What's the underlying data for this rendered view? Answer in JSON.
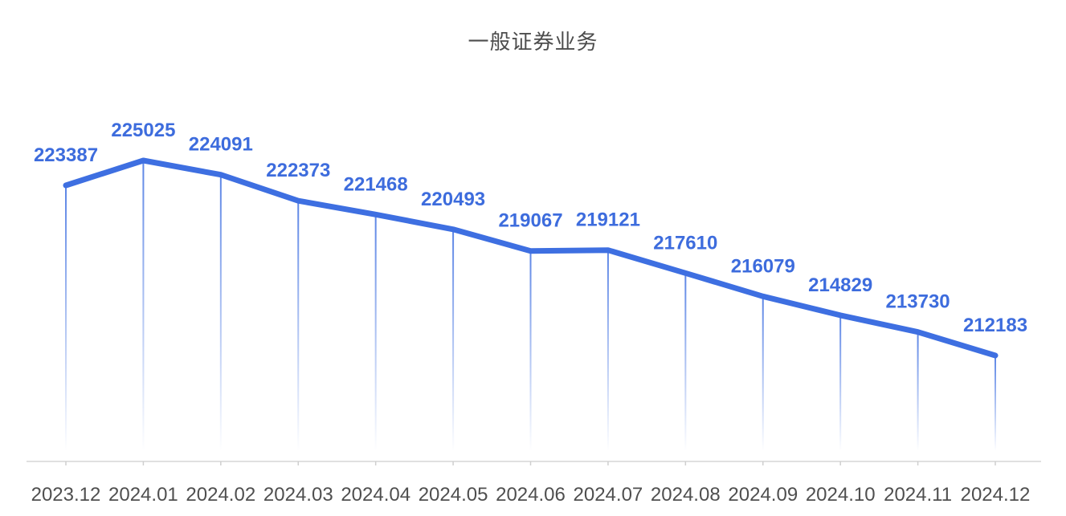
{
  "chart_data": {
    "type": "line",
    "title": "一般证券业务",
    "categories": [
      "2023.12",
      "2024.01",
      "2024.02",
      "2024.03",
      "2024.04",
      "2024.05",
      "2024.06",
      "2024.07",
      "2024.08",
      "2024.09",
      "2024.10",
      "2024.11",
      "2024.12"
    ],
    "values": [
      223387,
      225025,
      224091,
      222373,
      221468,
      220493,
      219067,
      219121,
      217610,
      216079,
      214829,
      213730,
      212183
    ],
    "ylim": [
      212183,
      225025
    ],
    "xlabel": "",
    "ylabel": "",
    "legend": "none",
    "grid": false,
    "data_labels_visible": true,
    "colors": {
      "line": "#3e6fe1",
      "data_label": "#3d6cdd",
      "drop_line": "#3e6fe1",
      "axis_line": "#e0e0e0",
      "axis_tick": "#cfcfcf",
      "axis_label": "#4f4f4f",
      "title": "#4d4d4d",
      "background": "#ffffff"
    }
  }
}
